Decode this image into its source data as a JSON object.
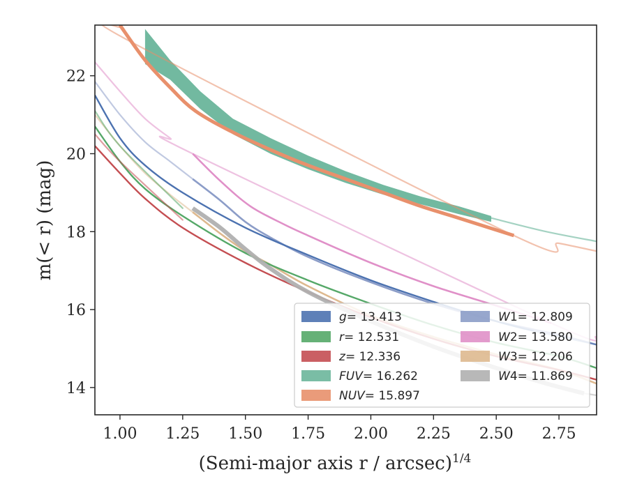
{
  "chart_data": {
    "type": "line",
    "xlabel": "(Semi-major axis r / arcsec)",
    "xlabel_sup": "1/4",
    "ylabel": "m(< r) (mag)",
    "xlim": [
      0.9,
      2.9
    ],
    "ylim": [
      23.3,
      13.3
    ],
    "y_inverted": true,
    "grid": false,
    "legend_placement": "lower-right",
    "x_ticks": [
      "1.00",
      "1.25",
      "1.50",
      "1.75",
      "2.00",
      "2.25",
      "2.50",
      "2.75"
    ],
    "y_ticks": [
      "14",
      "16",
      "18",
      "20",
      "22"
    ],
    "series": [
      {
        "name": "g",
        "label_value": "= 13.413",
        "color": "#4c72b0",
        "points": [
          [
            0.9,
            21.5
          ],
          [
            1.0,
            20.4
          ],
          [
            1.1,
            19.7
          ],
          [
            1.25,
            19.0
          ],
          [
            1.5,
            18.1
          ],
          [
            1.75,
            17.4
          ],
          [
            2.0,
            16.75
          ],
          [
            2.25,
            16.2
          ],
          [
            2.5,
            15.7
          ],
          [
            2.65,
            15.45
          ]
        ],
        "faint_points": [
          [
            2.65,
            15.45
          ],
          [
            2.9,
            15.1
          ]
        ]
      },
      {
        "name": "r",
        "label_value": "= 12.531",
        "color": "#55a868",
        "points": [
          [
            0.9,
            20.7
          ],
          [
            1.0,
            19.8
          ],
          [
            1.1,
            19.1
          ],
          [
            1.25,
            18.4
          ],
          [
            1.5,
            17.45
          ],
          [
            1.75,
            16.75
          ],
          [
            2.0,
            16.15
          ],
          [
            2.25,
            15.6
          ],
          [
            2.5,
            15.15
          ],
          [
            2.75,
            14.8
          ],
          [
            2.9,
            14.5
          ]
        ],
        "faint_points": [
          [
            0.9,
            21.1
          ],
          [
            1.0,
            20.2
          ],
          [
            1.25,
            18.6
          ]
        ]
      },
      {
        "name": "z",
        "label_value": "= 12.336",
        "color": "#c44e52",
        "points": [
          [
            0.9,
            20.2
          ],
          [
            1.0,
            19.5
          ],
          [
            1.1,
            18.85
          ],
          [
            1.25,
            18.1
          ],
          [
            1.5,
            17.2
          ],
          [
            1.75,
            16.45
          ],
          [
            2.0,
            15.8
          ],
          [
            2.25,
            15.25
          ],
          [
            2.5,
            14.8
          ],
          [
            2.75,
            14.45
          ],
          [
            2.9,
            14.2
          ]
        ],
        "faint_points": [
          [
            0.9,
            20.5
          ],
          [
            1.0,
            19.8
          ],
          [
            1.25,
            18.3
          ]
        ]
      },
      {
        "name": "FUV",
        "label_value": "= 16.262",
        "color": "#59ad8f",
        "band_x": [
          1.1,
          1.2,
          1.32,
          1.45,
          1.6,
          1.75,
          1.9,
          2.05,
          2.2,
          2.35,
          2.48
        ],
        "band_upper": [
          22.3,
          21.9,
          21.15,
          20.5,
          20.0,
          19.6,
          19.25,
          18.95,
          18.7,
          18.45,
          18.25
        ],
        "band_lower": [
          23.2,
          22.4,
          21.6,
          20.9,
          20.4,
          19.95,
          19.55,
          19.2,
          18.9,
          18.65,
          18.4
        ],
        "faint_points": [
          [
            2.48,
            18.35
          ],
          [
            2.7,
            18.0
          ],
          [
            2.9,
            17.75
          ]
        ]
      },
      {
        "name": "NUV",
        "label_value": "= 15.897",
        "color": "#e8906c",
        "points": [
          [
            1.0,
            23.3
          ],
          [
            1.1,
            22.4
          ],
          [
            1.2,
            21.7
          ],
          [
            1.3,
            21.1
          ],
          [
            1.45,
            20.55
          ],
          [
            1.6,
            20.1
          ],
          [
            1.75,
            19.7
          ],
          [
            1.9,
            19.35
          ],
          [
            2.05,
            19.0
          ],
          [
            2.2,
            18.65
          ],
          [
            2.35,
            18.35
          ],
          [
            2.57,
            17.9
          ]
        ],
        "faint_points": [
          [
            1.0,
            23.25
          ],
          [
            1.05,
            22.85
          ],
          [
            2.57,
            17.9
          ],
          [
            2.75,
            17.7
          ],
          [
            2.9,
            17.5
          ]
        ]
      },
      {
        "name": "W1",
        "label_value": "= 12.809",
        "color": "#8c9dc8",
        "points": [
          [
            1.29,
            19.35
          ],
          [
            1.4,
            18.8
          ],
          [
            1.5,
            18.25
          ],
          [
            1.6,
            17.85
          ],
          [
            1.75,
            17.35
          ],
          [
            2.0,
            16.7
          ],
          [
            2.25,
            16.15
          ],
          [
            2.5,
            15.7
          ],
          [
            2.75,
            15.35
          ],
          [
            2.9,
            15.1
          ]
        ],
        "faint_points": [
          [
            0.9,
            21.85
          ],
          [
            1.0,
            21.0
          ],
          [
            1.1,
            20.3
          ],
          [
            1.2,
            19.8
          ],
          [
            1.29,
            19.35
          ]
        ]
      },
      {
        "name": "W2",
        "label_value": "= 13.580",
        "color": "#e090c8",
        "points": [
          [
            1.29,
            20.0
          ],
          [
            1.4,
            19.3
          ],
          [
            1.52,
            18.65
          ],
          [
            1.65,
            18.2
          ],
          [
            1.75,
            17.9
          ],
          [
            2.0,
            17.2
          ],
          [
            2.25,
            16.6
          ],
          [
            2.5,
            16.1
          ],
          [
            2.72,
            15.65
          ]
        ],
        "faint_points": [
          [
            0.9,
            22.35
          ],
          [
            1.0,
            21.6
          ],
          [
            1.1,
            20.9
          ],
          [
            1.2,
            20.4
          ],
          [
            1.29,
            20.0
          ],
          [
            2.72,
            15.65
          ],
          [
            2.9,
            15.3
          ]
        ]
      },
      {
        "name": "W3",
        "label_value": "= 12.206",
        "color": "#deb98f",
        "points": [
          [
            1.29,
            18.5
          ],
          [
            1.4,
            17.95
          ],
          [
            1.5,
            17.5
          ],
          [
            1.6,
            17.15
          ],
          [
            1.75,
            16.6
          ],
          [
            2.0,
            15.85
          ],
          [
            2.25,
            15.3
          ],
          [
            2.5,
            14.85
          ],
          [
            2.75,
            14.45
          ],
          [
            2.9,
            14.1
          ]
        ],
        "faint_points": [
          [
            0.9,
            21.0
          ],
          [
            1.0,
            20.2
          ],
          [
            1.1,
            19.5
          ],
          [
            1.2,
            18.95
          ],
          [
            1.29,
            18.5
          ]
        ]
      },
      {
        "name": "W4",
        "label_value": "= 11.869",
        "color": "#b0b0b0",
        "points": [
          [
            1.29,
            18.6
          ],
          [
            1.4,
            18.1
          ],
          [
            1.5,
            17.55
          ],
          [
            1.6,
            17.05
          ],
          [
            1.75,
            16.45
          ],
          [
            2.0,
            15.7
          ],
          [
            2.25,
            15.05
          ],
          [
            2.5,
            14.5
          ],
          [
            2.7,
            14.1
          ],
          [
            2.85,
            13.85
          ]
        ],
        "faint_points": [
          [
            2.85,
            13.85
          ],
          [
            2.9,
            13.8
          ]
        ]
      }
    ],
    "legend": [
      {
        "series": "g",
        "italic": "g",
        "value": "= 13.413"
      },
      {
        "series": "r",
        "italic": "r",
        "value": "= 12.531"
      },
      {
        "series": "z",
        "italic": "z",
        "value": "= 12.336"
      },
      {
        "series": "FUV",
        "italic": "FUV",
        "value": "= 16.262"
      },
      {
        "series": "NUV",
        "italic": "NUV",
        "value": "= 15.897"
      },
      {
        "series": "W1",
        "italic": "W",
        "sub": "1",
        "value": "= 12.809"
      },
      {
        "series": "W2",
        "italic": "W",
        "sub": "2",
        "value": "= 13.580"
      },
      {
        "series": "W3",
        "italic": "W",
        "sub": "3",
        "value": "= 12.206"
      },
      {
        "series": "W4",
        "italic": "W",
        "sub": "4",
        "value": "= 11.869"
      }
    ]
  }
}
